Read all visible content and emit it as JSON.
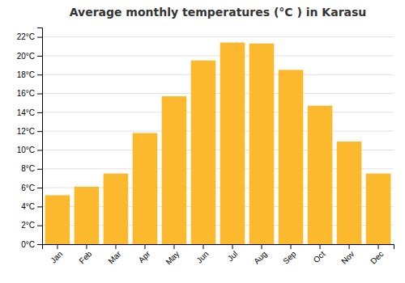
{
  "chart_data": {
    "type": "bar",
    "title": "Average monthly temperatures (°C ) in Karasu",
    "categories": [
      "Jan",
      "Feb",
      "Mar",
      "Apr",
      "May",
      "Jun",
      "Jul",
      "Aug",
      "Sep",
      "Oct",
      "Nov",
      "Dec"
    ],
    "values": [
      5.2,
      6.1,
      7.5,
      11.8,
      15.7,
      19.5,
      21.4,
      21.3,
      18.5,
      14.7,
      10.9,
      7.5
    ],
    "color": "#FDB92E",
    "ylim": [
      0,
      23
    ],
    "yticks": [
      {
        "value": 0,
        "label": "0°C"
      },
      {
        "value": 2,
        "label": "2°C"
      },
      {
        "value": 4,
        "label": "4°C"
      },
      {
        "value": 6,
        "label": "6°C"
      },
      {
        "value": 8,
        "label": "8°C"
      },
      {
        "value": 10,
        "label": "10°C"
      },
      {
        "value": 12,
        "label": "12°C"
      },
      {
        "value": 14,
        "label": "14°C"
      },
      {
        "value": 16,
        "label": "16°C"
      },
      {
        "value": 18,
        "label": "18°C"
      },
      {
        "value": 20,
        "label": "20°C"
      },
      {
        "value": 22,
        "label": "22°C"
      }
    ],
    "grid": true
  }
}
